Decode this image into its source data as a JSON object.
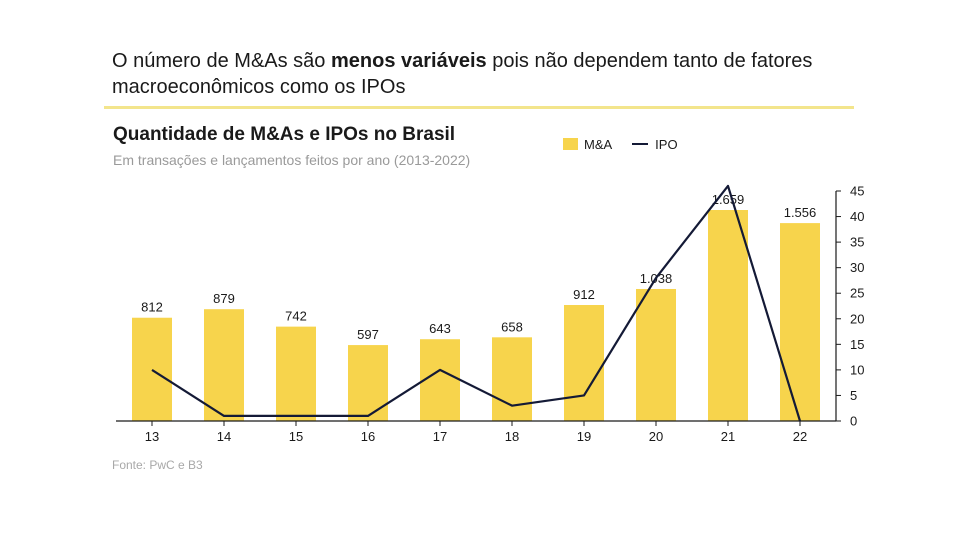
{
  "headline": {
    "part1": "O número de M&As são ",
    "bold": "menos variáveis",
    "part2": " pois não dependem tanto de fatores macroeconômicos como os IPOs"
  },
  "source": "Fonte: PwC e B3",
  "colors": {
    "bar": "#f7d44c",
    "line": "#141a36",
    "rule": "#f3e58c"
  },
  "chart_data": {
    "type": "bar",
    "title": "Quantidade de M&As e IPOs no Brasil",
    "subtitle": "Em transações e lançamentos feitos por ano (2013-2022)",
    "categories": [
      "13",
      "14",
      "15",
      "16",
      "17",
      "18",
      "19",
      "20",
      "21",
      "22"
    ],
    "legend": {
      "placement": "top-right",
      "entries": [
        "M&A",
        "IPO"
      ]
    },
    "series": [
      {
        "name": "M&A",
        "type": "bar",
        "values": [
          812,
          879,
          742,
          597,
          643,
          658,
          912,
          1038,
          1659,
          1556
        ],
        "labels": [
          "812",
          "879",
          "742",
          "597",
          "643",
          "658",
          "912",
          "1.038",
          "1.659",
          "1.556"
        ]
      },
      {
        "name": "IPO",
        "type": "line",
        "axis": "right",
        "values": [
          10,
          1,
          1,
          1,
          10,
          3,
          5,
          28,
          46,
          0
        ]
      }
    ],
    "y_right": {
      "ylim": [
        0,
        45
      ],
      "ticks": [
        0,
        5,
        10,
        15,
        20,
        25,
        30,
        35,
        40,
        45
      ]
    },
    "grid": false
  }
}
